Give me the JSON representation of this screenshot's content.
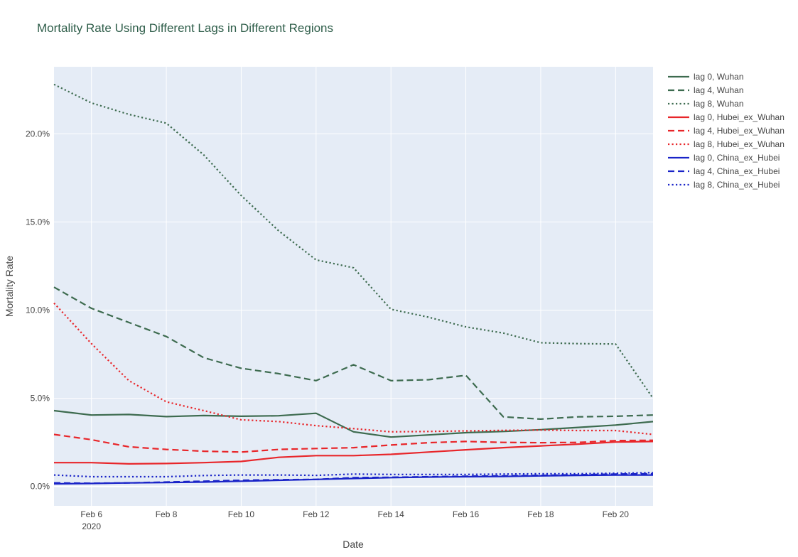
{
  "chart_data": {
    "type": "line",
    "title": "Mortality Rate Using Different Lags in Different Regions",
    "xlabel": "Date",
    "ylabel": "Mortality Rate",
    "x": [
      "2020-02-05",
      "2020-02-06",
      "2020-02-07",
      "2020-02-08",
      "2020-02-09",
      "2020-02-10",
      "2020-02-11",
      "2020-02-12",
      "2020-02-13",
      "2020-02-14",
      "2020-02-15",
      "2020-02-16",
      "2020-02-17",
      "2020-02-18",
      "2020-02-19",
      "2020-02-20",
      "2020-02-21"
    ],
    "xlim": [
      "2020-02-05",
      "2020-02-21"
    ],
    "ylim": [
      -1.1,
      23.8
    ],
    "x_ticks": [
      {
        "date": "2020-02-06",
        "label": "Feb 6",
        "sublabel": "2020"
      },
      {
        "date": "2020-02-08",
        "label": "Feb 8",
        "sublabel": ""
      },
      {
        "date": "2020-02-10",
        "label": "Feb 10",
        "sublabel": ""
      },
      {
        "date": "2020-02-12",
        "label": "Feb 12",
        "sublabel": ""
      },
      {
        "date": "2020-02-14",
        "label": "Feb 14",
        "sublabel": ""
      },
      {
        "date": "2020-02-16",
        "label": "Feb 16",
        "sublabel": ""
      },
      {
        "date": "2020-02-18",
        "label": "Feb 18",
        "sublabel": ""
      },
      {
        "date": "2020-02-20",
        "label": "Feb 20",
        "sublabel": ""
      }
    ],
    "y_ticks": [
      {
        "value": 0,
        "label": "0.0%"
      },
      {
        "value": 5,
        "label": "5.0%"
      },
      {
        "value": 10,
        "label": "10.0%"
      },
      {
        "value": 15,
        "label": "15.0%"
      },
      {
        "value": 20,
        "label": "20.0%"
      }
    ],
    "grid": true,
    "legend_position": "right",
    "plot_bgcolor": "#e5ecf6",
    "series": [
      {
        "name": "lag 0, Wuhan",
        "color": "#3d6b4f",
        "dash": "solid",
        "values": [
          4.3,
          4.05,
          4.08,
          3.96,
          4.02,
          3.98,
          4.01,
          4.15,
          3.1,
          2.8,
          2.92,
          3.05,
          3.12,
          3.22,
          3.35,
          3.48,
          3.68
        ]
      },
      {
        "name": "lag 4, Wuhan",
        "color": "#3d6b4f",
        "dash": "dash",
        "values": [
          11.3,
          10.1,
          9.3,
          8.5,
          7.3,
          6.7,
          6.4,
          6.0,
          6.9,
          6.0,
          6.05,
          6.3,
          3.95,
          3.82,
          3.95,
          3.98,
          4.05
        ]
      },
      {
        "name": "lag 8, Wuhan",
        "color": "#3d6b4f",
        "dash": "dot",
        "values": [
          22.8,
          21.75,
          21.1,
          20.6,
          18.8,
          16.5,
          14.5,
          12.85,
          12.4,
          10.05,
          9.6,
          9.05,
          8.7,
          8.15,
          8.1,
          8.08,
          5.0
        ]
      },
      {
        "name": "lag 0, Hubei_ex_Wuhan",
        "color": "#e8262a",
        "dash": "solid",
        "values": [
          1.35,
          1.35,
          1.28,
          1.3,
          1.35,
          1.42,
          1.65,
          1.75,
          1.75,
          1.82,
          1.95,
          2.08,
          2.2,
          2.3,
          2.4,
          2.52,
          2.55
        ]
      },
      {
        "name": "lag 4, Hubei_ex_Wuhan",
        "color": "#e8262a",
        "dash": "dash",
        "values": [
          2.95,
          2.65,
          2.25,
          2.1,
          2.0,
          1.95,
          2.1,
          2.15,
          2.2,
          2.35,
          2.48,
          2.55,
          2.5,
          2.48,
          2.5,
          2.6,
          2.62
        ]
      },
      {
        "name": "lag 8, Hubei_ex_Wuhan",
        "color": "#e8262a",
        "dash": "dot",
        "values": [
          10.4,
          8.1,
          6.0,
          4.8,
          4.3,
          3.78,
          3.68,
          3.45,
          3.28,
          3.1,
          3.12,
          3.15,
          3.18,
          3.2,
          3.17,
          3.17,
          2.95
        ]
      },
      {
        "name": "lag 0, China_ex_Hubei",
        "color": "#1a24c8",
        "dash": "solid",
        "values": [
          0.15,
          0.17,
          0.2,
          0.22,
          0.25,
          0.3,
          0.35,
          0.4,
          0.45,
          0.5,
          0.53,
          0.55,
          0.57,
          0.6,
          0.63,
          0.65,
          0.65
        ]
      },
      {
        "name": "lag 4, China_ex_Hubei",
        "color": "#1a24c8",
        "dash": "dash",
        "values": [
          0.2,
          0.18,
          0.2,
          0.25,
          0.3,
          0.35,
          0.38,
          0.4,
          0.5,
          0.52,
          0.55,
          0.58,
          0.6,
          0.63,
          0.66,
          0.7,
          0.72
        ]
      },
      {
        "name": "lag 8, China_ex_Hubei",
        "color": "#1a24c8",
        "dash": "dot",
        "values": [
          0.65,
          0.55,
          0.55,
          0.55,
          0.62,
          0.65,
          0.65,
          0.63,
          0.7,
          0.68,
          0.68,
          0.68,
          0.7,
          0.72,
          0.72,
          0.75,
          0.78
        ]
      }
    ]
  }
}
